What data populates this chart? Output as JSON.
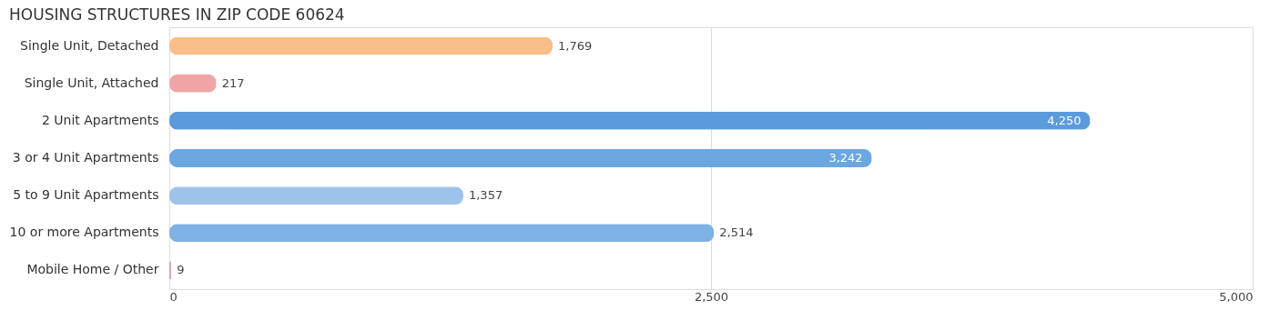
{
  "chart_data": {
    "type": "bar",
    "orientation": "horizontal",
    "title": "HOUSING STRUCTURES IN ZIP CODE 60624",
    "categories": [
      "Single Unit, Detached",
      "Single Unit, Attached",
      "2 Unit Apartments",
      "3 or 4 Unit Apartments",
      "5 to 9 Unit Apartments",
      "10 or more Apartments",
      "Mobile Home / Other"
    ],
    "values": [
      1769,
      217,
      4250,
      3242,
      1357,
      2514,
      9
    ],
    "colors": [
      "#f9be8a",
      "#f0a5a5",
      "#5b9bdc",
      "#6aa6e0",
      "#9ec3ea",
      "#7eb1e4",
      "#cfa8d0"
    ],
    "xlim": [
      0,
      5000
    ],
    "xticks": [
      {
        "value": 0,
        "label": "0"
      },
      {
        "value": 2500,
        "label": "2,500"
      },
      {
        "value": 5000,
        "label": "5,000"
      }
    ],
    "value_labels": [
      "1,769",
      "217",
      "4,250",
      "3,242",
      "1,357",
      "2,514",
      "9"
    ],
    "grid": "x"
  }
}
